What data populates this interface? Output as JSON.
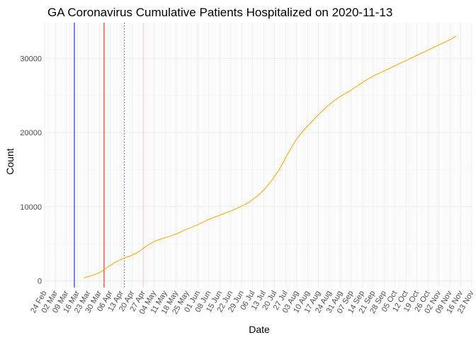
{
  "chart_data": {
    "type": "line",
    "title": "GA Coronavirus Cumulative Patients Hospitalized on 2020-11-13",
    "xlabel": "Date",
    "ylabel": "Count",
    "xlim": [
      "2020-02-24",
      "2020-11-23"
    ],
    "ylim": [
      -900,
      34800
    ],
    "y_ticks": [
      0,
      10000,
      20000,
      30000
    ],
    "x_tick_labels": [
      "24 Feb",
      "02 Mar",
      "09 Mar",
      "16 Mar",
      "23 Mar",
      "30 Mar",
      "06 Apr",
      "13 Apr",
      "20 Apr",
      "27 Apr",
      "04 May",
      "11 May",
      "18 May",
      "25 May",
      "01 Jun",
      "08 Jun",
      "15 Jun",
      "22 Jun",
      "29 Jun",
      "06 Jul",
      "13 Jul",
      "20 Jul",
      "27 Jul",
      "03 Aug",
      "10 Aug",
      "17 Aug",
      "24 Aug",
      "31 Aug",
      "07 Sep",
      "14 Sep",
      "21 Sep",
      "28 Sep",
      "05 Oct",
      "12 Oct",
      "19 Oct",
      "26 Oct",
      "02 Nov",
      "09 Nov",
      "16 Nov",
      "23 Nov"
    ],
    "x_tick_dates": [
      "2020-02-24",
      "2020-03-02",
      "2020-03-09",
      "2020-03-16",
      "2020-03-23",
      "2020-03-30",
      "2020-04-06",
      "2020-04-13",
      "2020-04-20",
      "2020-04-27",
      "2020-05-04",
      "2020-05-11",
      "2020-05-18",
      "2020-05-25",
      "2020-06-01",
      "2020-06-08",
      "2020-06-15",
      "2020-06-22",
      "2020-06-29",
      "2020-07-06",
      "2020-07-13",
      "2020-07-20",
      "2020-07-27",
      "2020-08-03",
      "2020-08-10",
      "2020-08-17",
      "2020-08-24",
      "2020-08-31",
      "2020-09-07",
      "2020-09-14",
      "2020-09-21",
      "2020-09-28",
      "2020-10-05",
      "2020-10-12",
      "2020-10-19",
      "2020-10-26",
      "2020-11-02",
      "2020-11-09",
      "2020-11-16",
      "2020-11-23"
    ],
    "grid": true,
    "series": [
      {
        "color": "#FFA500",
        "x": [
          "2020-03-20",
          "2020-03-25",
          "2020-03-30",
          "2020-04-04",
          "2020-04-09",
          "2020-04-14",
          "2020-04-19",
          "2020-04-24",
          "2020-04-29",
          "2020-05-04",
          "2020-05-09",
          "2020-05-14",
          "2020-05-19",
          "2020-05-24",
          "2020-05-29",
          "2020-06-03",
          "2020-06-08",
          "2020-06-13",
          "2020-06-18",
          "2020-06-23",
          "2020-06-28",
          "2020-07-03",
          "2020-07-08",
          "2020-07-13",
          "2020-07-18",
          "2020-07-23",
          "2020-07-28",
          "2020-08-02",
          "2020-08-07",
          "2020-08-12",
          "2020-08-17",
          "2020-08-22",
          "2020-08-27",
          "2020-09-01",
          "2020-09-06",
          "2020-09-11",
          "2020-09-16",
          "2020-09-21",
          "2020-09-26",
          "2020-10-01",
          "2020-10-06",
          "2020-10-11",
          "2020-10-16",
          "2020-10-21",
          "2020-10-26",
          "2020-10-31",
          "2020-11-05",
          "2020-11-10",
          "2020-11-13"
        ],
        "y": [
          400,
          700,
          1100,
          1800,
          2500,
          3000,
          3400,
          3900,
          4700,
          5300,
          5700,
          6000,
          6400,
          6900,
          7300,
          7800,
          8300,
          8700,
          9100,
          9500,
          10000,
          10500,
          11300,
          12200,
          13500,
          15000,
          17000,
          18800,
          20200,
          21300,
          22400,
          23400,
          24300,
          25000,
          25600,
          26300,
          27000,
          27600,
          28100,
          28600,
          29100,
          29600,
          30100,
          30600,
          31100,
          31600,
          32100,
          32600,
          33000
        ]
      }
    ],
    "vertical_lines": [
      {
        "date": "2020-03-14",
        "color": "#0000FF",
        "style": "solid"
      },
      {
        "date": "2020-04-02",
        "color": "#FF0000",
        "style": "solid"
      },
      {
        "date": "2020-04-15",
        "color": "#FF0000",
        "style": "dotted"
      },
      {
        "date": "2020-04-27",
        "color": "#FFC0CB",
        "style": "solid"
      }
    ]
  }
}
